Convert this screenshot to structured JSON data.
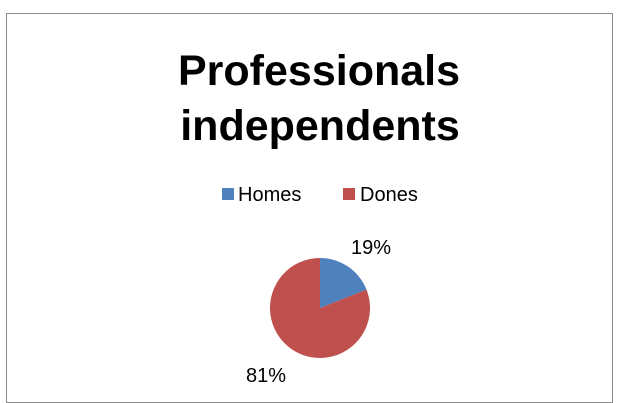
{
  "chart_data": {
    "type": "pie",
    "title": "Professionals independents",
    "title_lines": [
      "Professionals",
      "independents"
    ],
    "categories": [
      "Homes",
      "Dones"
    ],
    "values": [
      19,
      81
    ],
    "labels": [
      "19%",
      "81%"
    ],
    "colors": [
      "#4f81bd",
      "#c0504d"
    ],
    "legend_position": "top",
    "start_angle_deg": 0,
    "direction": "clockwise"
  }
}
